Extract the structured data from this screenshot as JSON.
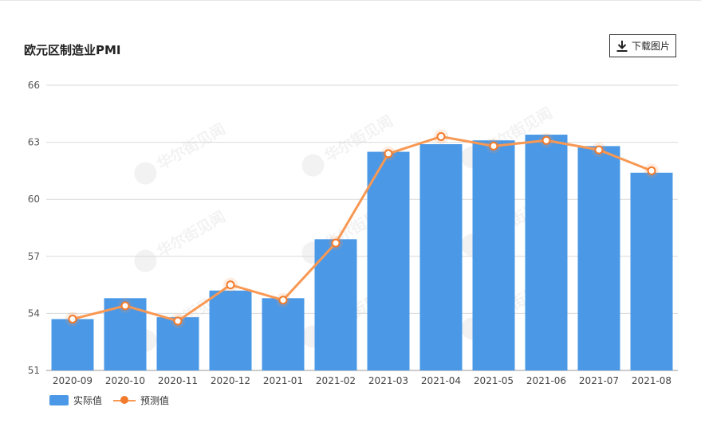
{
  "title": "欧元区制造业PMI",
  "download_label": "下载图片",
  "watermark": "华尔街见闻",
  "colors": {
    "bar": "#4a98e6",
    "line": "#f89853",
    "marker": "#f27b2c"
  },
  "chart_data": {
    "type": "bar",
    "categories": [
      "2020-09",
      "2020-10",
      "2020-11",
      "2020-12",
      "2021-01",
      "2021-02",
      "2021-03",
      "2021-04",
      "2021-05",
      "2021-06",
      "2021-07",
      "2021-08"
    ],
    "series": [
      {
        "name": "实际值",
        "type": "bar",
        "values": [
          53.7,
          54.8,
          53.8,
          55.2,
          54.8,
          57.9,
          62.5,
          62.9,
          63.1,
          63.4,
          62.8,
          61.4
        ]
      },
      {
        "name": "预测值",
        "type": "line",
        "values": [
          53.7,
          54.4,
          53.6,
          55.5,
          54.7,
          57.7,
          62.4,
          63.3,
          62.8,
          63.1,
          62.6,
          61.5
        ]
      }
    ],
    "yticks": [
      51,
      54,
      57,
      60,
      63,
      66
    ],
    "ylim": [
      51,
      66
    ],
    "grid": true,
    "legend_position": "bottom-left"
  }
}
